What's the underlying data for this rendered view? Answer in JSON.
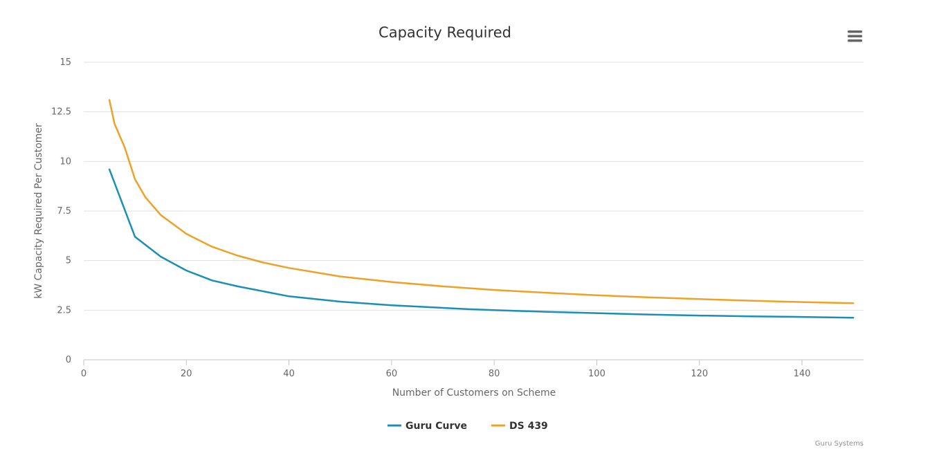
{
  "chart_data": {
    "type": "line",
    "title": "Capacity Required",
    "xlabel": "Number of Customers on Scheme",
    "ylabel": "kW Capacity Required Per Customer",
    "xlim": [
      0,
      152
    ],
    "ylim": [
      0,
      15
    ],
    "x_ticks": [
      0,
      20,
      40,
      60,
      80,
      100,
      120,
      140
    ],
    "y_ticks": [
      0,
      2.5,
      5,
      7.5,
      10,
      12.5,
      15
    ],
    "y_tick_labels": [
      "0",
      "2.5",
      "5",
      "7.5",
      "10",
      "12.5",
      "15"
    ],
    "grid": true,
    "legend_placement": "bottom-center",
    "series": [
      {
        "name": "Guru Curve",
        "color": "#1a8fb5",
        "x": [
          5,
          10,
          15,
          20,
          25,
          30,
          40,
          50,
          60,
          75,
          80,
          90,
          100,
          110,
          120,
          130,
          140,
          150
        ],
        "y": [
          9.6,
          6.2,
          5.2,
          4.5,
          4.0,
          3.7,
          3.2,
          2.93,
          2.75,
          2.55,
          2.5,
          2.42,
          2.35,
          2.28,
          2.23,
          2.19,
          2.16,
          2.12
        ]
      },
      {
        "name": "DS 439",
        "color": "#eea125",
        "x": [
          5,
          6,
          7,
          8,
          10,
          12,
          15,
          20,
          25,
          30,
          35,
          40,
          50,
          60,
          70,
          80,
          90,
          100,
          110,
          120,
          130,
          140,
          150
        ],
        "y": [
          13.1,
          11.9,
          11.3,
          10.7,
          9.1,
          8.2,
          7.3,
          6.35,
          5.7,
          5.25,
          4.9,
          4.63,
          4.2,
          3.92,
          3.7,
          3.52,
          3.38,
          3.25,
          3.15,
          3.06,
          2.98,
          2.91,
          2.85
        ]
      }
    ],
    "credits": "Guru Systems"
  },
  "menu": {
    "icon": "hamburger-menu-icon"
  }
}
